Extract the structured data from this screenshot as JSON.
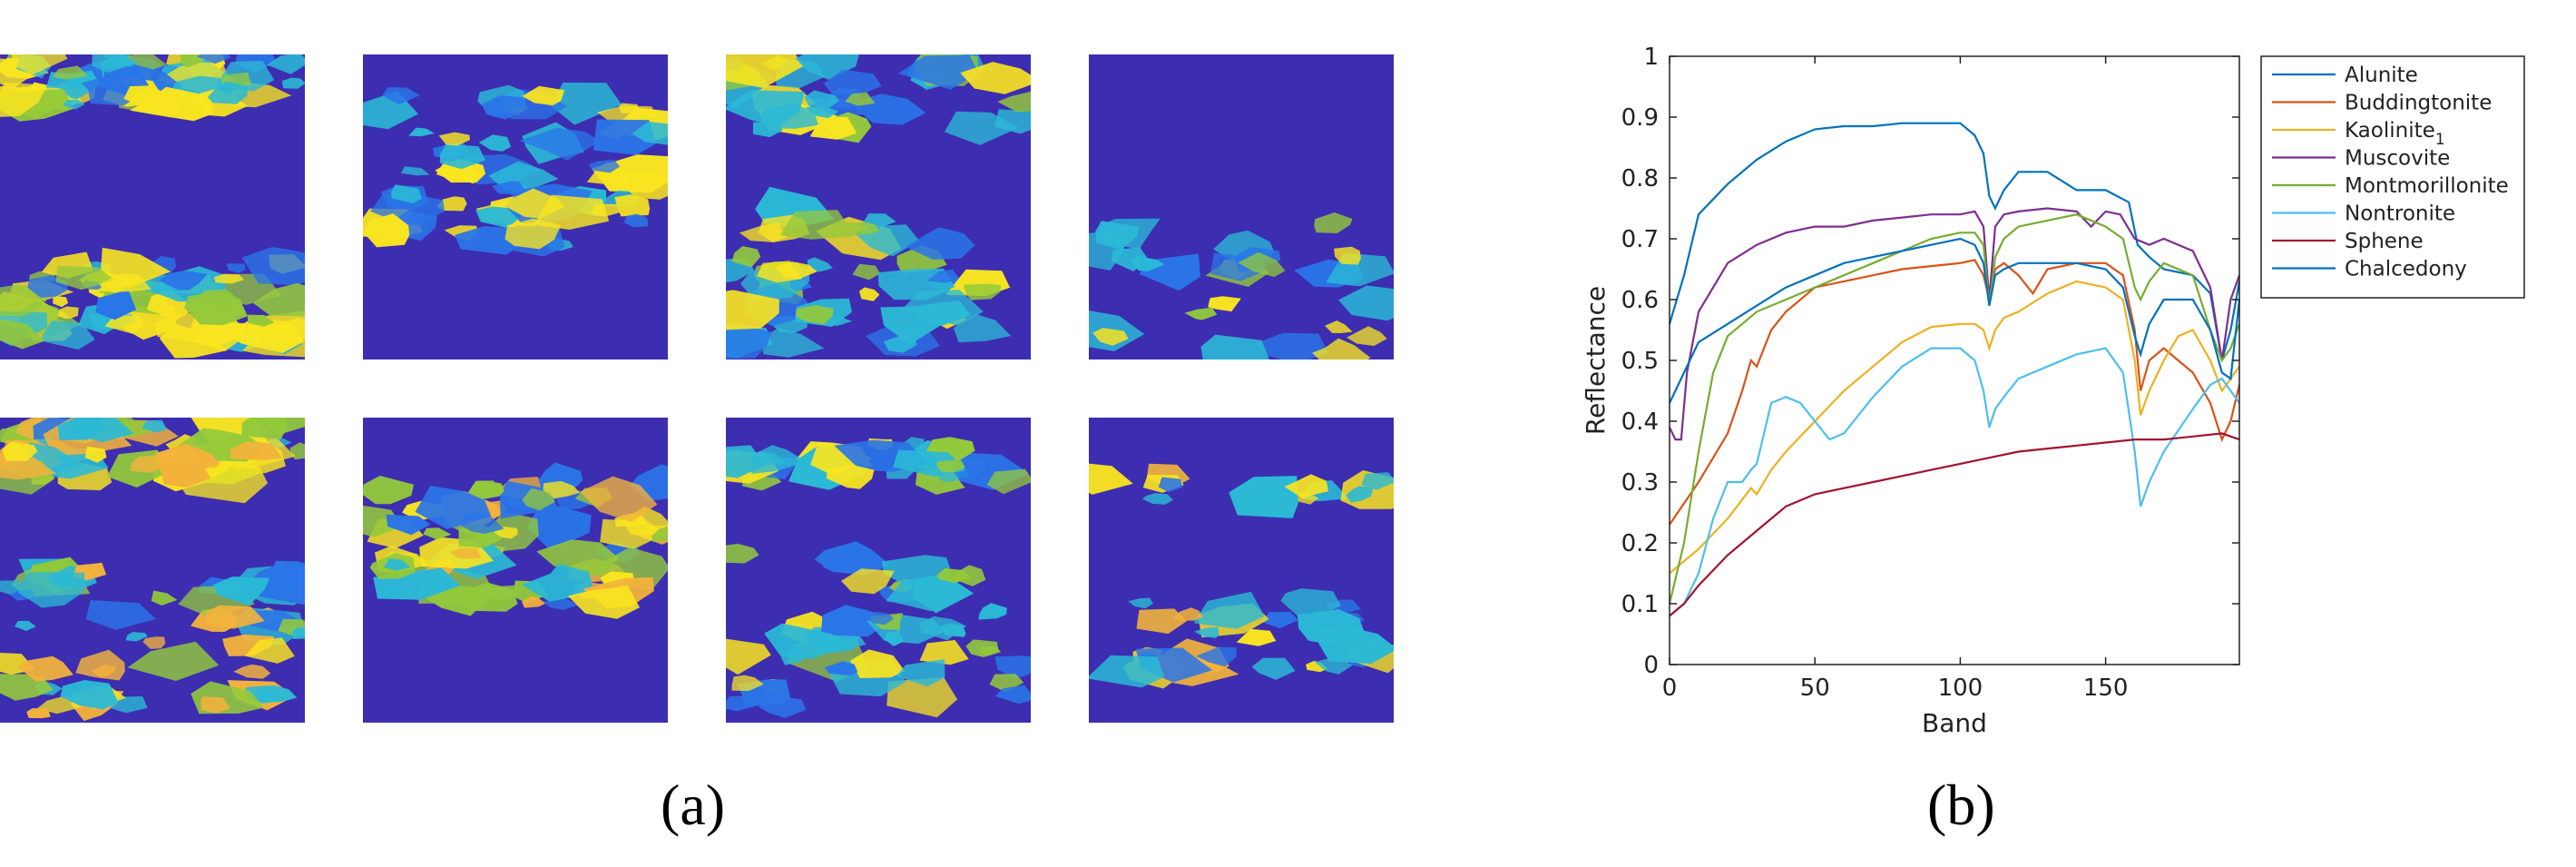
{
  "panels": {
    "a_label": "(a)",
    "b_label": "(b)"
  },
  "colors": {
    "map_background": "#3d2db0",
    "map_blue": "#2a75e8",
    "map_cyan": "#2bb9d6",
    "map_green": "#93c93b",
    "map_yellow": "#f9e51f",
    "map_orange": "#f3b33b"
  },
  "chart_data": {
    "type": "line",
    "xlabel": "Band",
    "ylabel": "Reflectance",
    "xlim": [
      0,
      196
    ],
    "ylim": [
      0,
      1
    ],
    "xticks": [
      0,
      50,
      100,
      150
    ],
    "yticks": [
      0,
      0.1,
      0.2,
      0.3,
      0.4,
      0.5,
      0.6,
      0.7,
      0.8,
      0.9,
      1
    ],
    "grid": false,
    "legend_position": "right-outside-top",
    "series": [
      {
        "name": "Alunite",
        "color": "#0072bd",
        "x": [
          0,
          5,
          10,
          20,
          30,
          40,
          50,
          60,
          70,
          80,
          90,
          100,
          105,
          108,
          110,
          112,
          115,
          120,
          130,
          140,
          150,
          158,
          161,
          165,
          170,
          180,
          186,
          190,
          193,
          196
        ],
        "y": [
          0.56,
          0.64,
          0.74,
          0.79,
          0.83,
          0.86,
          0.88,
          0.885,
          0.885,
          0.89,
          0.89,
          0.89,
          0.87,
          0.84,
          0.77,
          0.75,
          0.78,
          0.81,
          0.81,
          0.78,
          0.78,
          0.76,
          0.69,
          0.67,
          0.65,
          0.64,
          0.61,
          0.5,
          0.55,
          0.63
        ]
      },
      {
        "name": "Buddingtonite",
        "color": "#d95319",
        "x": [
          0,
          10,
          20,
          25,
          28,
          30,
          35,
          40,
          50,
          60,
          70,
          80,
          90,
          100,
          105,
          108,
          110,
          112,
          115,
          120,
          125,
          130,
          140,
          150,
          156,
          160,
          162,
          165,
          170,
          180,
          186,
          190,
          193,
          196
        ],
        "y": [
          0.23,
          0.3,
          0.38,
          0.45,
          0.5,
          0.49,
          0.55,
          0.58,
          0.62,
          0.63,
          0.64,
          0.65,
          0.655,
          0.66,
          0.665,
          0.64,
          0.6,
          0.65,
          0.66,
          0.64,
          0.61,
          0.65,
          0.66,
          0.66,
          0.64,
          0.55,
          0.45,
          0.5,
          0.52,
          0.48,
          0.43,
          0.37,
          0.4,
          0.46
        ]
      },
      {
        "name": "Kaolinite1",
        "color": "#edb120",
        "x": [
          0,
          10,
          20,
          28,
          30,
          35,
          40,
          50,
          60,
          70,
          80,
          90,
          100,
          105,
          108,
          110,
          112,
          115,
          120,
          130,
          140,
          150,
          156,
          160,
          162,
          165,
          170,
          175,
          180,
          186,
          190,
          193,
          196
        ],
        "y": [
          0.15,
          0.19,
          0.24,
          0.29,
          0.28,
          0.32,
          0.35,
          0.4,
          0.45,
          0.49,
          0.53,
          0.555,
          0.56,
          0.56,
          0.55,
          0.52,
          0.55,
          0.57,
          0.58,
          0.61,
          0.63,
          0.62,
          0.6,
          0.5,
          0.41,
          0.45,
          0.5,
          0.54,
          0.55,
          0.5,
          0.45,
          0.47,
          0.49
        ]
      },
      {
        "name": "Muscovite",
        "color": "#7e2f8e",
        "x": [
          0,
          2,
          4,
          6,
          10,
          20,
          30,
          40,
          50,
          60,
          70,
          80,
          90,
          100,
          105,
          108,
          110,
          112,
          115,
          120,
          130,
          140,
          145,
          150,
          155,
          160,
          165,
          170,
          180,
          186,
          190,
          193,
          196
        ],
        "y": [
          0.39,
          0.37,
          0.37,
          0.48,
          0.58,
          0.66,
          0.69,
          0.71,
          0.72,
          0.72,
          0.73,
          0.735,
          0.74,
          0.74,
          0.745,
          0.72,
          0.6,
          0.72,
          0.74,
          0.745,
          0.75,
          0.745,
          0.72,
          0.745,
          0.74,
          0.7,
          0.69,
          0.7,
          0.68,
          0.62,
          0.5,
          0.6,
          0.64
        ]
      },
      {
        "name": "Montmorillonite",
        "color": "#77ac30",
        "x": [
          0,
          5,
          10,
          15,
          20,
          30,
          40,
          50,
          60,
          70,
          80,
          90,
          100,
          105,
          108,
          110,
          112,
          115,
          120,
          130,
          140,
          150,
          156,
          160,
          162,
          165,
          170,
          180,
          186,
          190,
          193,
          196
        ],
        "y": [
          0.1,
          0.2,
          0.35,
          0.48,
          0.54,
          0.58,
          0.6,
          0.62,
          0.64,
          0.66,
          0.68,
          0.7,
          0.71,
          0.71,
          0.69,
          0.59,
          0.67,
          0.7,
          0.72,
          0.73,
          0.74,
          0.72,
          0.7,
          0.62,
          0.6,
          0.63,
          0.66,
          0.64,
          0.55,
          0.5,
          0.52,
          0.56
        ]
      },
      {
        "name": "Nontronite",
        "color": "#4dbeee",
        "x": [
          0,
          5,
          10,
          15,
          20,
          25,
          28,
          30,
          35,
          40,
          45,
          50,
          55,
          60,
          70,
          80,
          90,
          100,
          105,
          108,
          110,
          112,
          115,
          120,
          130,
          140,
          150,
          156,
          160,
          162,
          165,
          170,
          180,
          186,
          190,
          193,
          196
        ],
        "y": [
          0.08,
          0.1,
          0.15,
          0.24,
          0.3,
          0.3,
          0.32,
          0.33,
          0.43,
          0.44,
          0.43,
          0.4,
          0.37,
          0.38,
          0.44,
          0.49,
          0.52,
          0.52,
          0.5,
          0.45,
          0.39,
          0.42,
          0.44,
          0.47,
          0.49,
          0.51,
          0.52,
          0.48,
          0.35,
          0.26,
          0.3,
          0.35,
          0.42,
          0.46,
          0.47,
          0.45,
          0.43
        ]
      },
      {
        "name": "Sphene",
        "color": "#a2142f",
        "x": [
          0,
          5,
          10,
          20,
          30,
          40,
          50,
          60,
          70,
          80,
          90,
          100,
          110,
          120,
          130,
          140,
          150,
          160,
          170,
          180,
          190,
          196
        ],
        "y": [
          0.08,
          0.1,
          0.13,
          0.18,
          0.22,
          0.26,
          0.28,
          0.29,
          0.3,
          0.31,
          0.32,
          0.33,
          0.34,
          0.35,
          0.355,
          0.36,
          0.365,
          0.37,
          0.37,
          0.375,
          0.38,
          0.37
        ]
      },
      {
        "name": "Chalcedony",
        "color": "#0072bd",
        "x": [
          0,
          5,
          10,
          20,
          30,
          40,
          50,
          60,
          70,
          80,
          90,
          100,
          105,
          108,
          110,
          112,
          115,
          120,
          130,
          140,
          150,
          156,
          160,
          162,
          165,
          170,
          180,
          186,
          190,
          193,
          196
        ],
        "y": [
          0.43,
          0.48,
          0.53,
          0.56,
          0.59,
          0.62,
          0.64,
          0.66,
          0.67,
          0.68,
          0.69,
          0.7,
          0.69,
          0.66,
          0.59,
          0.64,
          0.65,
          0.66,
          0.66,
          0.66,
          0.65,
          0.62,
          0.54,
          0.51,
          0.56,
          0.6,
          0.6,
          0.55,
          0.48,
          0.47,
          0.6
        ]
      }
    ]
  }
}
